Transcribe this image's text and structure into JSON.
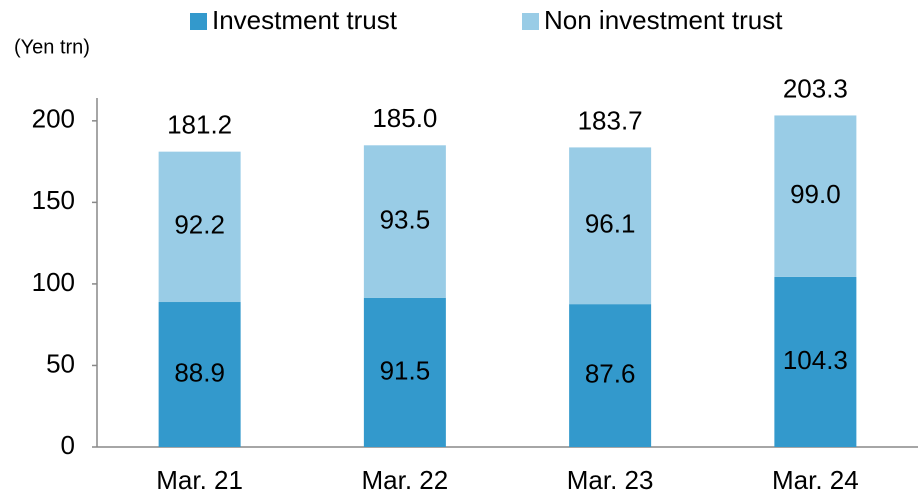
{
  "chart_data": {
    "type": "stacked_bar",
    "y_unit_label": "(Yen trn)",
    "categories": [
      "Mar. 21",
      "Mar. 22",
      "Mar. 23",
      "Mar. 24"
    ],
    "series": [
      {
        "name": "Investment trust",
        "color": "#3399cc",
        "values": [
          88.9,
          91.5,
          87.6,
          104.3
        ],
        "value_labels": [
          "88.9",
          "91.5",
          "87.6",
          "104.3"
        ]
      },
      {
        "name": "Non investment trust",
        "color": "#99cce6",
        "values": [
          92.2,
          93.5,
          96.1,
          99
        ],
        "value_labels": [
          "92.2",
          "93.5",
          "96.1",
          "99.0"
        ]
      }
    ],
    "totals": [
      181.2,
      185,
      183.7,
      203.3
    ],
    "total_labels": [
      "181.2",
      "185.0",
      "183.7",
      "203.3"
    ],
    "ylim": [
      0,
      214
    ],
    "yticks": [
      0,
      50,
      100,
      150,
      200
    ],
    "legend": "top"
  }
}
